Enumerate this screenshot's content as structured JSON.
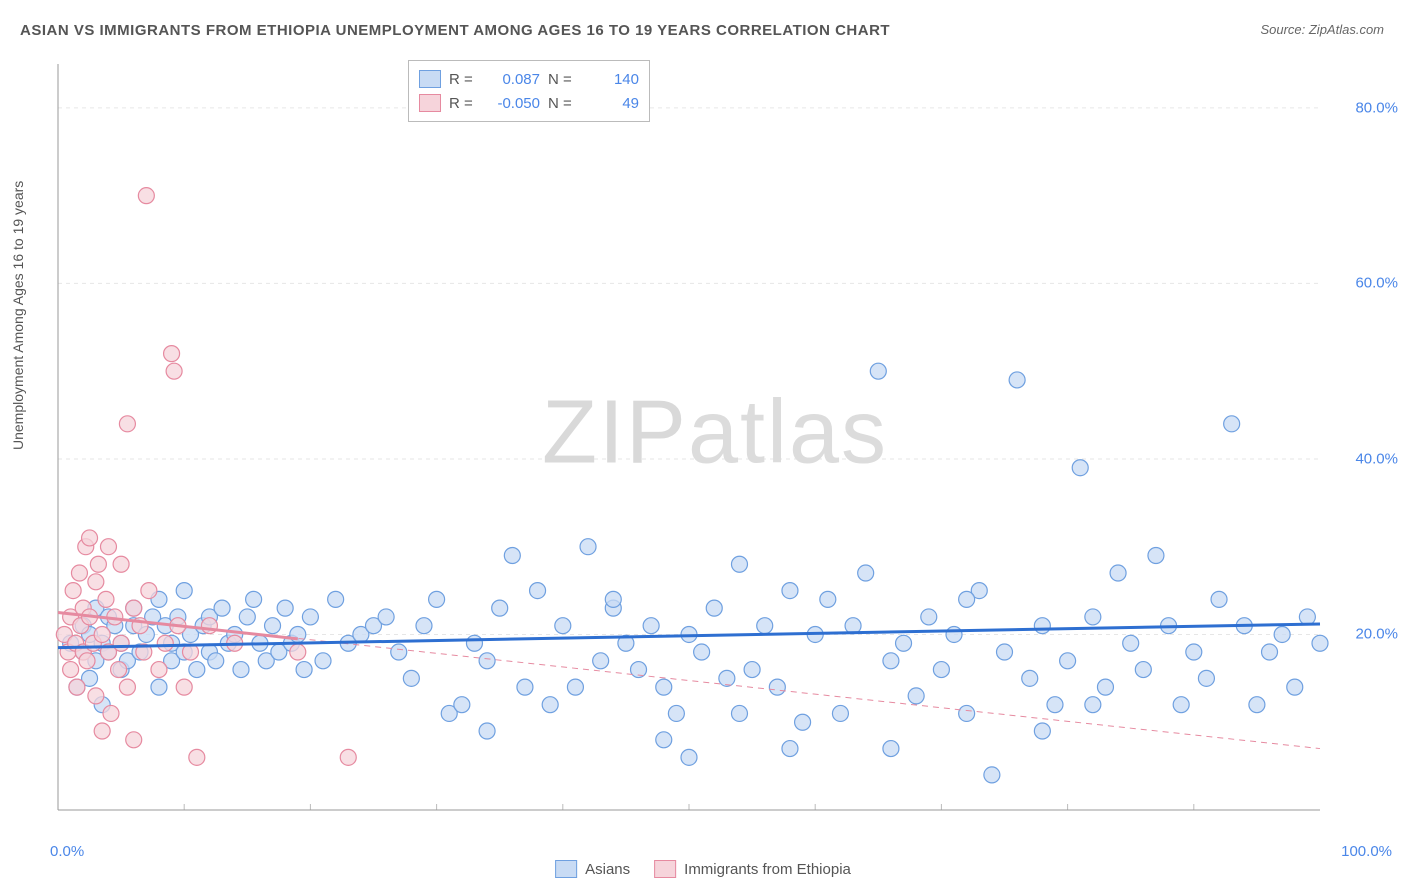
{
  "title": "ASIAN VS IMMIGRANTS FROM ETHIOPIA UNEMPLOYMENT AMONG AGES 16 TO 19 YEARS CORRELATION CHART",
  "source": "Source: ZipAtlas.com",
  "y_axis_label": "Unemployment Among Ages 16 to 19 years",
  "watermark": "ZIPatlas",
  "chart": {
    "type": "scatter",
    "xlim": [
      0,
      100
    ],
    "ylim": [
      0,
      85
    ],
    "x_ticks": [
      0,
      100
    ],
    "x_tick_labels": [
      "0.0%",
      "100.0%"
    ],
    "y_ticks": [
      20,
      40,
      60,
      80
    ],
    "y_tick_labels": [
      "20.0%",
      "40.0%",
      "60.0%",
      "80.0%"
    ],
    "x_grid_minor": [
      10,
      20,
      30,
      40,
      50,
      60,
      70,
      80,
      90
    ],
    "grid_color": "#e6e6e6",
    "grid_dash": "4,4",
    "axis_color": "#999999",
    "plot_bg": "#ffffff",
    "marker_radius": 8,
    "marker_stroke_width": 1.2,
    "trend_line_width": 3,
    "trend_dash_width": 1,
    "series": [
      {
        "name": "Asians",
        "label": "Asians",
        "fill": "#c8dbf4",
        "stroke": "#6fa0e0",
        "trend_color": "#2e6fd1",
        "trend_solid": true,
        "R": "0.087",
        "N": "140",
        "trend": {
          "x1": 0,
          "y1": 18.5,
          "x2": 100,
          "y2": 21.2
        },
        "points": [
          [
            1,
            19
          ],
          [
            1.5,
            14
          ],
          [
            2,
            18
          ],
          [
            2,
            21
          ],
          [
            2.5,
            15
          ],
          [
            2.5,
            20
          ],
          [
            3,
            23
          ],
          [
            3,
            17
          ],
          [
            3.5,
            19
          ],
          [
            3.5,
            12
          ],
          [
            4,
            22
          ],
          [
            4,
            18
          ],
          [
            4.5,
            21
          ],
          [
            5,
            16
          ],
          [
            5,
            19
          ],
          [
            5.5,
            17
          ],
          [
            6,
            21
          ],
          [
            6,
            23
          ],
          [
            6.5,
            18
          ],
          [
            7,
            20
          ],
          [
            7.5,
            22
          ],
          [
            8,
            14
          ],
          [
            8,
            24
          ],
          [
            8.5,
            21
          ],
          [
            9,
            17
          ],
          [
            9,
            19
          ],
          [
            9.5,
            22
          ],
          [
            10,
            25
          ],
          [
            10,
            18
          ],
          [
            10.5,
            20
          ],
          [
            11,
            16
          ],
          [
            11.5,
            21
          ],
          [
            12,
            22
          ],
          [
            12,
            18
          ],
          [
            12.5,
            17
          ],
          [
            13,
            23
          ],
          [
            13.5,
            19
          ],
          [
            14,
            20
          ],
          [
            14.5,
            16
          ],
          [
            15,
            22
          ],
          [
            15.5,
            24
          ],
          [
            16,
            19
          ],
          [
            16.5,
            17
          ],
          [
            17,
            21
          ],
          [
            17.5,
            18
          ],
          [
            18,
            23
          ],
          [
            18.5,
            19
          ],
          [
            19,
            20
          ],
          [
            19.5,
            16
          ],
          [
            20,
            22
          ],
          [
            21,
            17
          ],
          [
            22,
            24
          ],
          [
            23,
            19
          ],
          [
            24,
            20
          ],
          [
            25,
            21
          ],
          [
            26,
            22
          ],
          [
            27,
            18
          ],
          [
            28,
            15
          ],
          [
            29,
            21
          ],
          [
            30,
            24
          ],
          [
            31,
            11
          ],
          [
            32,
            12
          ],
          [
            33,
            19
          ],
          [
            34,
            17
          ],
          [
            35,
            23
          ],
          [
            36,
            29
          ],
          [
            37,
            14
          ],
          [
            38,
            25
          ],
          [
            39,
            12
          ],
          [
            40,
            21
          ],
          [
            41,
            14
          ],
          [
            42,
            30
          ],
          [
            43,
            17
          ],
          [
            44,
            23
          ],
          [
            45,
            19
          ],
          [
            46,
            16
          ],
          [
            47,
            21
          ],
          [
            48,
            14
          ],
          [
            49,
            11
          ],
          [
            50,
            20
          ],
          [
            51,
            18
          ],
          [
            52,
            23
          ],
          [
            53,
            15
          ],
          [
            54,
            28
          ],
          [
            55,
            16
          ],
          [
            56,
            21
          ],
          [
            57,
            14
          ],
          [
            58,
            25
          ],
          [
            59,
            10
          ],
          [
            60,
            20
          ],
          [
            61,
            24
          ],
          [
            62,
            11
          ],
          [
            63,
            21
          ],
          [
            64,
            27
          ],
          [
            65,
            50
          ],
          [
            66,
            17
          ],
          [
            67,
            19
          ],
          [
            68,
            13
          ],
          [
            69,
            22
          ],
          [
            70,
            16
          ],
          [
            71,
            20
          ],
          [
            72,
            11
          ],
          [
            73,
            25
          ],
          [
            74,
            4
          ],
          [
            75,
            18
          ],
          [
            76,
            49
          ],
          [
            77,
            15
          ],
          [
            78,
            21
          ],
          [
            79,
            12
          ],
          [
            80,
            17
          ],
          [
            81,
            39
          ],
          [
            82,
            22
          ],
          [
            83,
            14
          ],
          [
            84,
            27
          ],
          [
            85,
            19
          ],
          [
            86,
            16
          ],
          [
            87,
            29
          ],
          [
            88,
            21
          ],
          [
            89,
            12
          ],
          [
            90,
            18
          ],
          [
            91,
            15
          ],
          [
            92,
            24
          ],
          [
            93,
            44
          ],
          [
            94,
            21
          ],
          [
            95,
            12
          ],
          [
            96,
            18
          ],
          [
            97,
            20
          ],
          [
            98,
            14
          ],
          [
            99,
            22
          ],
          [
            100,
            19
          ],
          [
            34,
            9
          ],
          [
            48,
            8
          ],
          [
            58,
            7
          ],
          [
            66,
            7
          ],
          [
            78,
            9
          ],
          [
            50,
            6
          ],
          [
            44,
            24
          ],
          [
            54,
            11
          ],
          [
            72,
            24
          ],
          [
            82,
            12
          ]
        ]
      },
      {
        "name": "Immigrants from Ethiopia",
        "label": "Immigrants from Ethiopia",
        "fill": "#f6d4db",
        "stroke": "#e68aa0",
        "trend_color": "#e68aa0",
        "trend_solid": false,
        "R": "-0.050",
        "N": "49",
        "trend": {
          "x1": 0,
          "y1": 22.5,
          "x2": 100,
          "y2": 7.0
        },
        "trend_solid_portion": {
          "x1": 0,
          "y1": 22.5,
          "x2": 19,
          "y2": 19.5
        },
        "points": [
          [
            0.5,
            20
          ],
          [
            0.8,
            18
          ],
          [
            1,
            22
          ],
          [
            1,
            16
          ],
          [
            1.2,
            25
          ],
          [
            1.4,
            19
          ],
          [
            1.5,
            14
          ],
          [
            1.7,
            27
          ],
          [
            1.8,
            21
          ],
          [
            2,
            23
          ],
          [
            2,
            18
          ],
          [
            2.2,
            30
          ],
          [
            2.3,
            17
          ],
          [
            2.5,
            31
          ],
          [
            2.5,
            22
          ],
          [
            2.8,
            19
          ],
          [
            3,
            26
          ],
          [
            3,
            13
          ],
          [
            3.2,
            28
          ],
          [
            3.5,
            20
          ],
          [
            3.5,
            9
          ],
          [
            3.8,
            24
          ],
          [
            4,
            18
          ],
          [
            4,
            30
          ],
          [
            4.2,
            11
          ],
          [
            4.5,
            22
          ],
          [
            4.8,
            16
          ],
          [
            5,
            28
          ],
          [
            5,
            19
          ],
          [
            5.5,
            44
          ],
          [
            5.5,
            14
          ],
          [
            6,
            23
          ],
          [
            6,
            8
          ],
          [
            6.5,
            21
          ],
          [
            6.8,
            18
          ],
          [
            7,
            70
          ],
          [
            7.2,
            25
          ],
          [
            8,
            16
          ],
          [
            8.5,
            19
          ],
          [
            9,
            52
          ],
          [
            9.2,
            50
          ],
          [
            9.5,
            21
          ],
          [
            10,
            14
          ],
          [
            10.5,
            18
          ],
          [
            11,
            6
          ],
          [
            12,
            21
          ],
          [
            14,
            19
          ],
          [
            19,
            18
          ],
          [
            23,
            6
          ]
        ]
      }
    ]
  },
  "legend_top": {
    "cols": [
      "R =",
      "N ="
    ]
  },
  "legend_bottom": {
    "items": [
      "Asians",
      "Immigrants from Ethiopia"
    ]
  }
}
